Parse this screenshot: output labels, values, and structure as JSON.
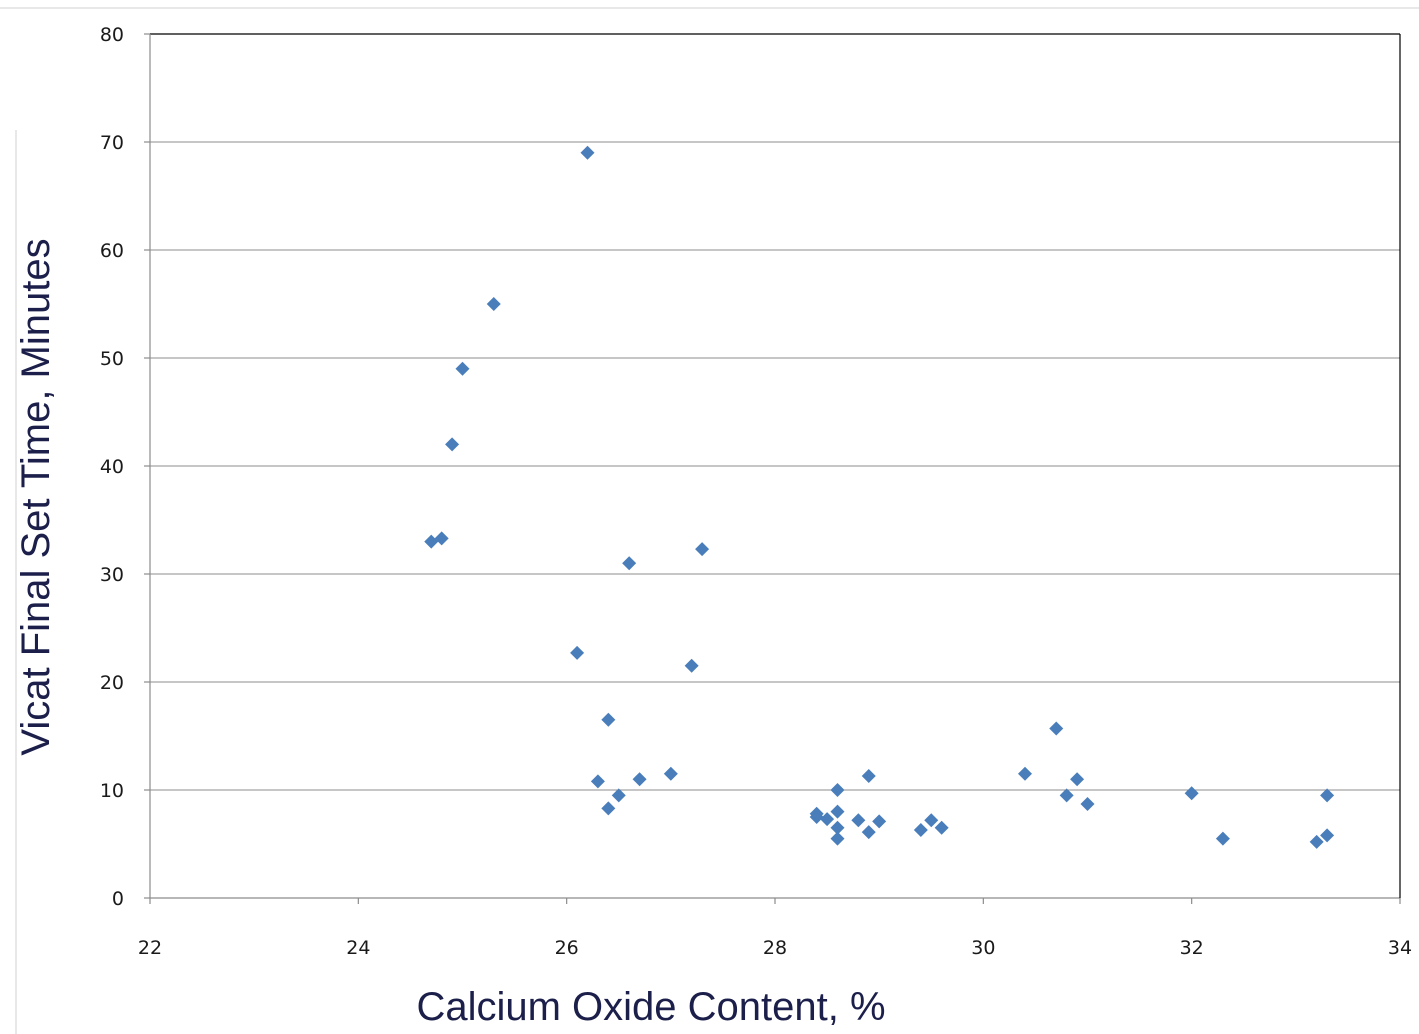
{
  "chart_data": {
    "type": "scatter",
    "title": "",
    "xlabel": "Calcium Oxide Content, %",
    "ylabel": "Vicat Final Set Time, Minutes",
    "xlim": [
      22,
      34
    ],
    "ylim": [
      0,
      80
    ],
    "x_ticks": [
      22,
      24,
      26,
      28,
      30,
      32,
      34
    ],
    "y_ticks": [
      0,
      10,
      20,
      30,
      40,
      50,
      60,
      70,
      80
    ],
    "grid": "horizontal",
    "legend": "none",
    "marker": "diamond",
    "color": "#4a7ebb",
    "series": [
      {
        "points": [
          [
            24.7,
            33.0
          ],
          [
            24.8,
            33.3
          ],
          [
            24.9,
            42.0
          ],
          [
            25.0,
            49.0
          ],
          [
            25.3,
            55.0
          ],
          [
            26.1,
            22.7
          ],
          [
            26.2,
            69.0
          ],
          [
            26.3,
            10.8
          ],
          [
            26.4,
            16.5
          ],
          [
            26.4,
            8.3
          ],
          [
            26.5,
            9.5
          ],
          [
            26.6,
            31.0
          ],
          [
            26.7,
            11.0
          ],
          [
            27.0,
            11.5
          ],
          [
            27.2,
            21.5
          ],
          [
            27.3,
            32.3
          ],
          [
            28.4,
            7.8
          ],
          [
            28.4,
            7.5
          ],
          [
            28.5,
            7.3
          ],
          [
            28.6,
            10.0
          ],
          [
            28.6,
            8.0
          ],
          [
            28.6,
            6.5
          ],
          [
            28.6,
            5.5
          ],
          [
            28.8,
            7.2
          ],
          [
            28.9,
            11.3
          ],
          [
            28.9,
            6.1
          ],
          [
            29.0,
            7.1
          ],
          [
            29.4,
            6.3
          ],
          [
            29.5,
            7.2
          ],
          [
            29.6,
            6.5
          ],
          [
            30.4,
            11.5
          ],
          [
            30.7,
            15.7
          ],
          [
            30.8,
            9.5
          ],
          [
            30.9,
            11.0
          ],
          [
            31.0,
            8.7
          ],
          [
            32.0,
            9.7
          ],
          [
            32.3,
            5.5
          ],
          [
            33.2,
            5.2
          ],
          [
            33.3,
            5.8
          ],
          [
            33.3,
            9.5
          ]
        ]
      }
    ]
  }
}
